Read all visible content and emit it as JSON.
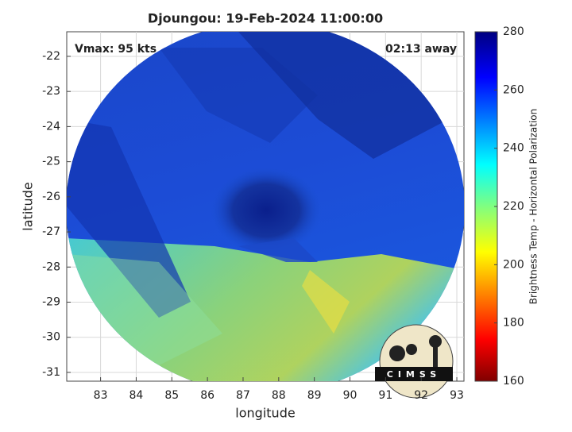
{
  "chart_data": {
    "type": "image",
    "title": "Djoungou: 19-Feb-2024 11:00:00",
    "annotations": [
      "Vmax: 95 kts",
      "02:13 away"
    ],
    "xlabel": "longitude",
    "ylabel": "latitude",
    "xlim": [
      82.05,
      93.2
    ],
    "ylim": [
      -31.25,
      -21.3
    ],
    "xticks": [
      83,
      84,
      85,
      86,
      87,
      88,
      89,
      90,
      91,
      92,
      93
    ],
    "yticks": [
      -31,
      -30,
      -29,
      -28,
      -27,
      -26,
      -25,
      -24,
      -23,
      -22
    ],
    "grid": true,
    "colorbar": {
      "label": "Brightness Temp - Horizontal Polarization",
      "lim": [
        160,
        280
      ],
      "ticks": [
        160,
        180,
        200,
        220,
        240,
        260,
        280
      ]
    }
  },
  "logo": {
    "text": "CIMSS"
  }
}
